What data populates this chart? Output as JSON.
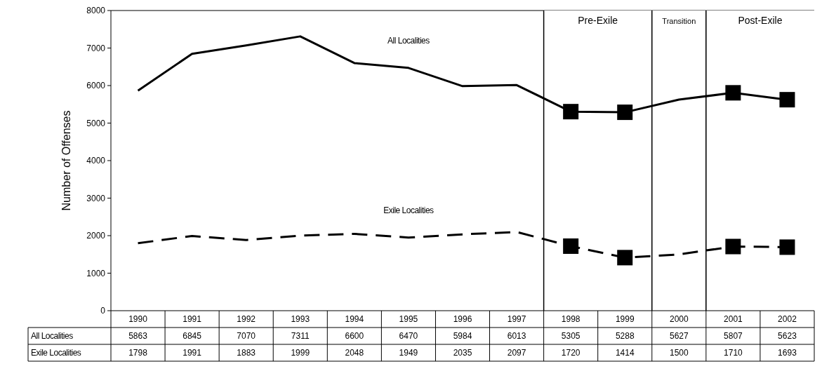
{
  "chart_data": {
    "type": "line",
    "ylabel": "Number of Offenses",
    "categories": [
      "1990",
      "1991",
      "1992",
      "1993",
      "1994",
      "1995",
      "1996",
      "1997",
      "1998",
      "1999",
      "2000",
      "2001",
      "2002"
    ],
    "ylim": [
      0,
      8000
    ],
    "yticks": [
      0,
      1000,
      2000,
      3000,
      4000,
      5000,
      6000,
      7000,
      8000
    ],
    "data_labels": true,
    "series": [
      {
        "name": "All Localities",
        "color": "#000000",
        "line_style": "solid",
        "values": [
          5863,
          6845,
          7070,
          7311,
          6600,
          6470,
          5984,
          6013,
          5305,
          5288,
          5627,
          5807,
          5623
        ]
      },
      {
        "name": "Exile Localities",
        "color": "#000000",
        "line_style": "dashed",
        "values": [
          1798,
          1991,
          1883,
          1999,
          2048,
          1949,
          2035,
          2097,
          1720,
          1414,
          1500,
          1710,
          1693
        ]
      },
      {
        "type": "scatter",
        "color": "#000000",
        "marker": "square",
        "values": [
          null,
          null,
          null,
          null,
          null,
          null,
          null,
          null,
          5305,
          5288,
          null,
          5807,
          5623
        ],
        "value_labels": [
          null,
          null,
          null,
          null,
          null,
          null,
          null,
          null,
          null,
          null,
          null,
          null,
          null
        ]
      },
      {
        "type": "scatter",
        "color": "#000000",
        "marker": "square",
        "values": [
          null,
          null,
          null,
          null,
          null,
          null,
          null,
          null,
          1720,
          1414,
          null,
          1710,
          1693
        ],
        "value_labels": [
          null,
          null,
          null,
          null,
          null,
          null,
          null,
          null,
          null,
          null,
          null,
          null,
          null
        ]
      }
    ],
    "bands": [
      {
        "axis": "x",
        "from": "1998",
        "to": "1999",
        "label": "Pre-Exile",
        "color": "#ffffff"
      },
      {
        "axis": "x",
        "from": "2000",
        "to": "2000",
        "label": "Transition",
        "color": "#ffffff"
      },
      {
        "axis": "x",
        "from": "2001",
        "to": "2002",
        "label": "Post-Exile",
        "color": "#ffffff"
      }
    ]
  }
}
